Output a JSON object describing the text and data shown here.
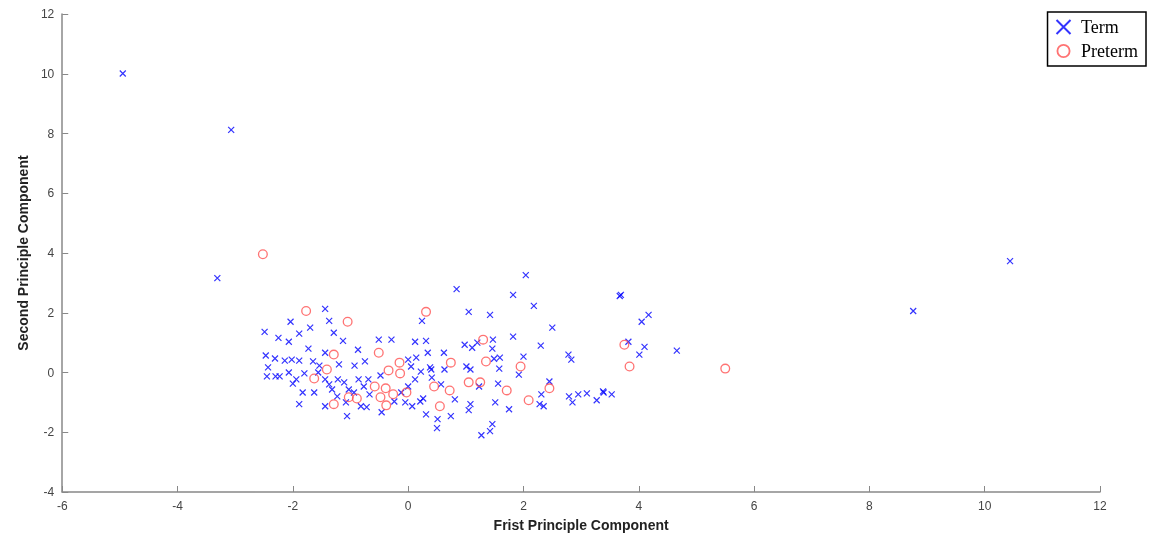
{
  "chart_data": {
    "type": "scatter",
    "xlabel": "Frist Principle Component",
    "ylabel": "Second Principle Component",
    "xlim": [
      -6,
      12
    ],
    "xticks": [
      -6,
      -4,
      -2,
      0,
      2,
      4,
      6,
      8,
      10,
      12
    ],
    "ylim": [
      -4,
      12
    ],
    "yticks": [
      -4,
      -2,
      0,
      2,
      4,
      6,
      8,
      10,
      12
    ],
    "grid": false,
    "legend": "top right",
    "series": [
      {
        "name": "Term",
        "color": "#0000ff",
        "marker": "cross",
        "x": [
          -4.95,
          -3.07,
          -3.31,
          8.76,
          10.44,
          0.84,
          2.04,
          1.82,
          2.18,
          1.05,
          1.42,
          2.5,
          1.82,
          3.69,
          0.98,
          1.11,
          1.2,
          1.47,
          1.46,
          2.3,
          0.62,
          1.49,
          1.59,
          2.0,
          2.78,
          2.83,
          1.58,
          1.92,
          0.63,
          1.01,
          1.08,
          0.4,
          0.57,
          1.23,
          1.56,
          2.31,
          2.45,
          2.79,
          2.95,
          3.1,
          3.27,
          3.39,
          3.53,
          2.85,
          2.28,
          2.35,
          0.81,
          1.08,
          1.05,
          0.74,
          1.75,
          1.51,
          0.51,
          0.5,
          1.46,
          1.42,
          1.27,
          0.41,
          3.67,
          4.17,
          4.05,
          3.82,
          4.1,
          4.01,
          4.66,
          3.38,
          -1.44,
          -1.37,
          -2.04,
          -2.49,
          -1.89,
          -1.7,
          -2.25,
          -2.07,
          -1.29,
          -1.13,
          -1.73,
          -0.87,
          -0.51,
          -0.29,
          0.12,
          0.31,
          0.34,
          0.24,
          -2.47,
          -2.31,
          -2.14,
          -2.02,
          -1.89,
          -1.65,
          -1.44,
          -1.2,
          -0.93,
          -0.75,
          -2.43,
          -2.3,
          -2.23,
          -2.45,
          -2.07,
          -1.94,
          -2.0,
          -1.8,
          -1.54,
          -1.56,
          -1.44,
          -1.37,
          -1.32,
          -1.22,
          -1.11,
          -1.03,
          -0.94,
          -0.86,
          -0.77,
          -0.69,
          -0.67,
          -0.48,
          0.0,
          0.14,
          0.05,
          0.22,
          0.38,
          0.12,
          0.0,
          0.26,
          0.21,
          0.07,
          -0.05,
          -0.12,
          -0.24,
          -0.46,
          -0.72,
          -0.82,
          -1.08,
          -1.23,
          -1.44,
          -1.89,
          -1.06,
          -1.83,
          -1.63,
          0.31
        ],
        "values": [
          10.01,
          8.12,
          3.16,
          2.06,
          3.73,
          2.79,
          3.26,
          2.6,
          2.23,
          2.03,
          1.93,
          1.5,
          1.2,
          2.6,
          0.93,
          0.83,
          1.0,
          1.1,
          0.8,
          0.9,
          0.66,
          0.46,
          0.5,
          0.53,
          0.6,
          0.43,
          0.13,
          -0.07,
          0.1,
          0.2,
          0.1,
          0.1,
          -0.4,
          -0.47,
          -0.37,
          -0.73,
          -0.3,
          -0.8,
          -0.73,
          -0.7,
          -0.93,
          -0.67,
          -0.73,
          -1.0,
          -1.06,
          -1.13,
          -0.9,
          -1.06,
          -1.26,
          -1.46,
          -1.23,
          -1.0,
          -1.56,
          -1.86,
          -1.73,
          -1.96,
          -2.1,
          -0.17,
          2.56,
          1.93,
          1.7,
          1.03,
          0.86,
          0.6,
          0.73,
          -0.63,
          2.13,
          1.73,
          1.7,
          1.36,
          1.3,
          1.5,
          1.16,
          1.03,
          1.33,
          1.06,
          0.8,
          0.76,
          1.1,
          1.1,
          1.03,
          1.06,
          0.66,
          1.73,
          0.57,
          0.47,
          0.4,
          0.43,
          0.4,
          0.37,
          0.66,
          0.27,
          0.23,
          0.37,
          0.17,
          -0.13,
          -0.13,
          -0.13,
          0.0,
          -0.23,
          -0.37,
          -0.03,
          0.23,
          0.0,
          -0.23,
          -0.4,
          -0.57,
          -0.23,
          -0.33,
          -0.57,
          -0.67,
          -0.23,
          -0.47,
          -0.23,
          -0.73,
          -0.1,
          0.43,
          0.5,
          0.2,
          0.03,
          0.17,
          -0.23,
          -0.47,
          -0.87,
          -0.97,
          -1.13,
          -1.0,
          -0.67,
          -0.97,
          -1.33,
          -1.16,
          -1.13,
          -1.0,
          -0.8,
          -1.13,
          -1.06,
          -1.46,
          -0.67,
          -0.67,
          -1.4
        ]
      },
      {
        "name": "Preterm",
        "color": "#ff5050",
        "marker": "circle",
        "x": [
          -2.52,
          -1.77,
          -1.05,
          0.31,
          -1.29,
          -1.41,
          -1.63,
          -1.29,
          -1.03,
          -0.89,
          -0.51,
          -0.34,
          -0.15,
          -0.14,
          -0.58,
          -0.39,
          -0.26,
          -0.48,
          -0.38,
          -0.03,
          0.45,
          0.55,
          1.3,
          0.74,
          1.35,
          1.95,
          0.72,
          1.05,
          1.25,
          1.71,
          2.45,
          2.09,
          3.75,
          3.84,
          5.5
        ],
        "values": [
          3.96,
          2.06,
          1.7,
          2.03,
          0.6,
          0.1,
          -0.2,
          -1.06,
          -0.83,
          -0.87,
          0.66,
          0.07,
          0.33,
          -0.03,
          -0.47,
          -0.53,
          -0.73,
          -0.83,
          -1.1,
          -0.67,
          -0.47,
          -1.13,
          1.1,
          0.33,
          0.37,
          0.2,
          -0.6,
          -0.33,
          -0.33,
          -0.6,
          -0.53,
          -0.93,
          0.93,
          0.2,
          0.13
        ]
      }
    ]
  }
}
